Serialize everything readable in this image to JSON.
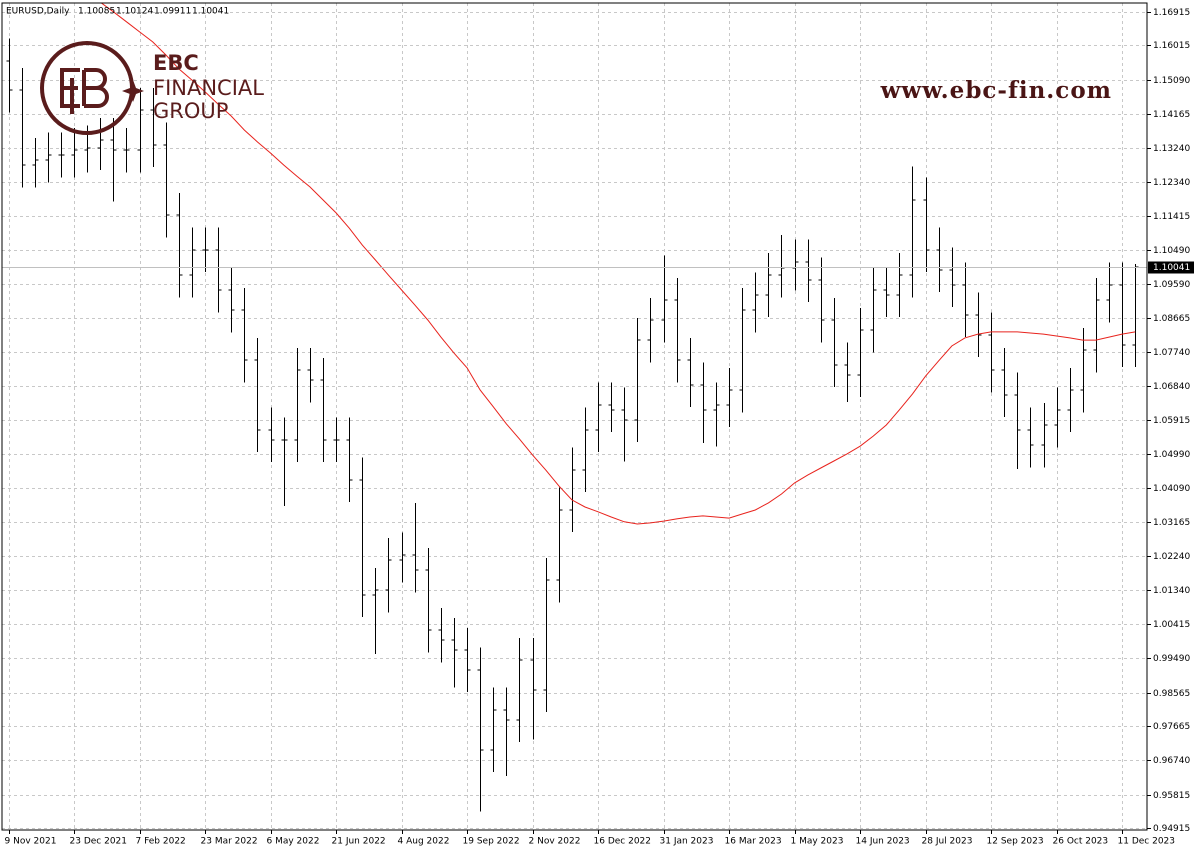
{
  "header": {
    "symbol": "EURUSD,Daily",
    "open": 1.10085,
    "high": 1.10124,
    "low": 1.09911,
    "close": 1.10041
  },
  "logo": {
    "name": "EBC",
    "line1": "FINANCIAL",
    "line2": "GROUP",
    "url": "www.ebc-fin.com"
  },
  "chart_data": {
    "type": "ohlc",
    "grid": true,
    "color": "#000000",
    "ylim": [
      0.94915,
      1.17158
    ],
    "xlim": [
      -0.5,
      86.5
    ],
    "yticks": [
      1.16915,
      1.16015,
      {
        "value": 1.1509,
        "label": "1.15090"
      },
      1.14165,
      {
        "value": 1.1324,
        "label": "1.13240"
      },
      {
        "value": 1.1234,
        "label": "1.12340"
      },
      1.11415,
      {
        "value": 1.1049,
        "label": "1.10490"
      },
      {
        "value": 1.0959,
        "label": "1.09590"
      },
      1.08665,
      {
        "value": 1.0774,
        "label": "1.07740"
      },
      {
        "value": 1.0684,
        "label": "1.06840"
      },
      1.05915,
      {
        "value": 1.0499,
        "label": "1.04990"
      },
      {
        "value": 1.0409,
        "label": "1.04090"
      },
      1.03165,
      {
        "value": 1.0224,
        "label": "1.02240"
      },
      {
        "value": 1.0134,
        "label": "1.01340"
      },
      1.00415,
      {
        "value": 0.9949,
        "label": "0.99490"
      },
      0.98565,
      0.97665,
      {
        "value": 0.9674,
        "label": "0.96740"
      },
      0.95815,
      0.94915
    ],
    "xticks": [
      {
        "value": 0,
        "label": "9 Nov 2021"
      },
      {
        "value": 5,
        "label": "23 Dec 2021"
      },
      {
        "value": 10,
        "label": "7 Feb 2022"
      },
      {
        "value": 15,
        "label": "23 Mar 2022"
      },
      {
        "value": 20,
        "label": "6 May 2022"
      },
      {
        "value": 25,
        "label": "21 Jun 2022"
      },
      {
        "value": 30,
        "label": "4 Aug 2022"
      },
      {
        "value": 35,
        "label": "19 Sep 2022"
      },
      {
        "value": 40,
        "label": "2 Nov 2022"
      },
      {
        "value": 45,
        "label": "16 Dec 2022"
      },
      {
        "value": 50,
        "label": "31 Jan 2023"
      },
      {
        "value": 55,
        "label": "16 Mar 2023"
      },
      {
        "value": 60,
        "label": "1 May 2023"
      },
      {
        "value": 65,
        "label": "14 Jun 2023"
      },
      {
        "value": 70,
        "label": "28 Jul 2023"
      },
      {
        "value": 75,
        "label": "12 Sep 2023"
      },
      {
        "value": 80,
        "label": "26 Oct 2023"
      },
      {
        "value": 85,
        "label": "11 Dec 2023"
      }
    ],
    "open": [
      1.156,
      1.1481,
      1.1279,
      1.1292,
      1.1306,
      1.1306,
      1.1319,
      1.1325,
      1.1346,
      1.1319,
      1.1319,
      1.1427,
      1.1333,
      1.1144,
      1.0982,
      1.105,
      1.105,
      1.0942,
      1.0888,
      1.0753,
      1.0565,
      1.0538,
      1.0538,
      1.0726,
      1.0699,
      1.0538,
      1.0538,
      1.043,
      1.012,
      1.0133,
      1.0214,
      1.0228,
      1.0187,
      1.0025,
      0.9998,
      0.9971,
      0.9918,
      0.9702,
      0.981,
      0.9783,
      0.9944,
      0.9864,
      1.016,
      1.0349,
      1.0457,
      1.0565,
      1.0632,
      1.0619,
      1.0592,
      1.0807,
      1.0861,
      1.0915,
      1.0753,
      1.0686,
      1.0619,
      1.0632,
      1.0672,
      1.0888,
      1.0929,
      1.0982,
      1.1001,
      1.1018,
      1.0969,
      1.0861,
      1.074,
      1.0713,
      1.0834,
      1.0942,
      1.0929,
      1.0982,
      1.1185,
      1.105,
      1.0996,
      1.0956,
      1.0875,
      1.0821,
      1.0726,
      1.0659,
      1.0565,
      1.0524,
      1.0578,
      1.0619,
      1.0672,
      1.078,
      1.0915,
      1.0956,
      1.0794
    ],
    "high": [
      1.162,
      1.1541,
      1.1352,
      1.1366,
      1.1366,
      1.1379,
      1.1385,
      1.1406,
      1.1406,
      1.1379,
      1.1487,
      1.1487,
      1.1393,
      1.1204,
      1.111,
      1.111,
      1.111,
      1.1002,
      1.0948,
      1.0813,
      1.0625,
      1.0598,
      1.0786,
      1.0786,
      1.0759,
      1.0598,
      1.0598,
      1.049,
      1.0193,
      1.0274,
      1.0288,
      1.0368,
      1.0247,
      1.0085,
      1.0058,
      1.0031,
      0.9978,
      0.987,
      0.987,
      1.0004,
      1.0004,
      1.022,
      1.0409,
      1.0517,
      1.0625,
      1.0692,
      1.0692,
      1.0679,
      1.0867,
      1.0921,
      1.1035,
      1.0975,
      1.0813,
      1.0746,
      1.0692,
      1.0732,
      1.0948,
      1.0989,
      1.1042,
      1.109,
      1.1078,
      1.1078,
      1.1029,
      1.0921,
      1.08,
      1.0894,
      1.1002,
      1.1002,
      1.1042,
      1.1275,
      1.1245,
      1.111,
      1.1056,
      1.1016,
      1.0935,
      1.0881,
      1.0786,
      1.0719,
      1.0625,
      1.0638,
      1.0679,
      1.0732,
      1.084,
      1.0975,
      1.1016,
      1.1016,
      1.1012
    ],
    "low": [
      1.1421,
      1.1219,
      1.1219,
      1.1232,
      1.1246,
      1.1246,
      1.1259,
      1.1265,
      1.118,
      1.1259,
      1.1259,
      1.1273,
      1.1084,
      1.0922,
      1.0922,
      1.099,
      1.0882,
      1.0828,
      1.0693,
      1.0505,
      1.0478,
      1.036,
      1.0478,
      1.0639,
      1.0478,
      1.0478,
      1.037,
      1.006,
      0.996,
      1.0073,
      1.0154,
      1.0127,
      0.9965,
      0.9938,
      0.987,
      0.9858,
      0.9536,
      0.9642,
      0.9632,
      0.9723,
      0.973,
      0.9804,
      1.01,
      1.0289,
      1.0397,
      1.0505,
      1.0559,
      1.048,
      1.0532,
      1.0747,
      1.0801,
      1.0693,
      1.0626,
      1.053,
      1.052,
      1.0572,
      1.0612,
      1.0828,
      1.0869,
      1.0922,
      1.0941,
      1.0909,
      1.0801,
      1.068,
      1.064,
      1.0653,
      1.0774,
      1.0869,
      1.0869,
      1.0922,
      1.099,
      1.0936,
      1.0896,
      1.0815,
      1.0761,
      1.0666,
      1.0599,
      1.046,
      1.0464,
      1.0464,
      1.0518,
      1.0559,
      1.0612,
      1.072,
      1.0855,
      1.0734,
      1.0734
    ],
    "close": [
      1.1481,
      1.1279,
      1.1292,
      1.1306,
      1.1306,
      1.1319,
      1.1325,
      1.1346,
      1.1319,
      1.1319,
      1.1427,
      1.1333,
      1.1144,
      1.0982,
      1.105,
      1.105,
      1.0942,
      1.0888,
      1.0753,
      1.0565,
      1.0538,
      1.0538,
      1.0726,
      1.0699,
      1.0538,
      1.0538,
      1.043,
      1.012,
      1.0133,
      1.0214,
      1.0228,
      1.0187,
      1.0025,
      0.9998,
      0.9971,
      0.9918,
      0.9702,
      0.981,
      0.9783,
      0.9944,
      0.9864,
      1.016,
      1.0349,
      1.0457,
      1.0565,
      1.0632,
      1.0619,
      1.0592,
      1.0807,
      1.0861,
      1.0915,
      1.0753,
      1.0686,
      1.0619,
      1.0632,
      1.0672,
      1.0888,
      1.0929,
      1.0982,
      1.1001,
      1.1018,
      1.0969,
      1.0861,
      1.074,
      1.0713,
      1.0834,
      1.0942,
      1.0929,
      1.0982,
      1.1185,
      1.105,
      1.0996,
      1.0956,
      1.0875,
      1.0821,
      1.0726,
      1.0659,
      1.0565,
      1.0524,
      1.0578,
      1.0619,
      1.0672,
      1.078,
      1.0915,
      1.0956,
      1.0794,
      1.1004
    ],
    "moving_average": {
      "color": "#e8231d",
      "values": [
        null,
        null,
        null,
        null,
        null,
        null,
        null,
        1.1718,
        1.1692,
        1.1665,
        1.1638,
        1.1611,
        1.1576,
        1.1538,
        1.1508,
        1.1476,
        1.1443,
        1.1411,
        1.1373,
        1.1341,
        1.1311,
        1.1279,
        1.1249,
        1.122,
        1.1185,
        1.115,
        1.1109,
        1.1063,
        1.1023,
        1.0982,
        1.0942,
        1.0902,
        1.0861,
        1.0815,
        1.0772,
        1.0732,
        1.0672,
        1.0627,
        1.0581,
        1.054,
        1.0497,
        1.0457,
        1.0414,
        1.0376,
        1.0357,
        1.0344,
        1.033,
        1.0317,
        1.0311,
        1.0314,
        1.0319,
        1.0325,
        1.033,
        1.0333,
        1.033,
        1.0327,
        1.0338,
        1.0349,
        1.0368,
        1.0392,
        1.0422,
        1.0443,
        1.0462,
        1.0481,
        1.05,
        1.0521,
        1.0548,
        1.0578,
        1.0619,
        1.0662,
        1.071,
        1.0751,
        1.0791,
        1.0813,
        1.0823,
        1.0829,
        1.0829,
        1.0829,
        1.0826,
        1.0823,
        1.0818,
        1.0813,
        1.0807,
        1.0807,
        1.0815,
        1.0823,
        1.0829
      ]
    },
    "price_line": {
      "color": "#c0c0c0"
    }
  }
}
